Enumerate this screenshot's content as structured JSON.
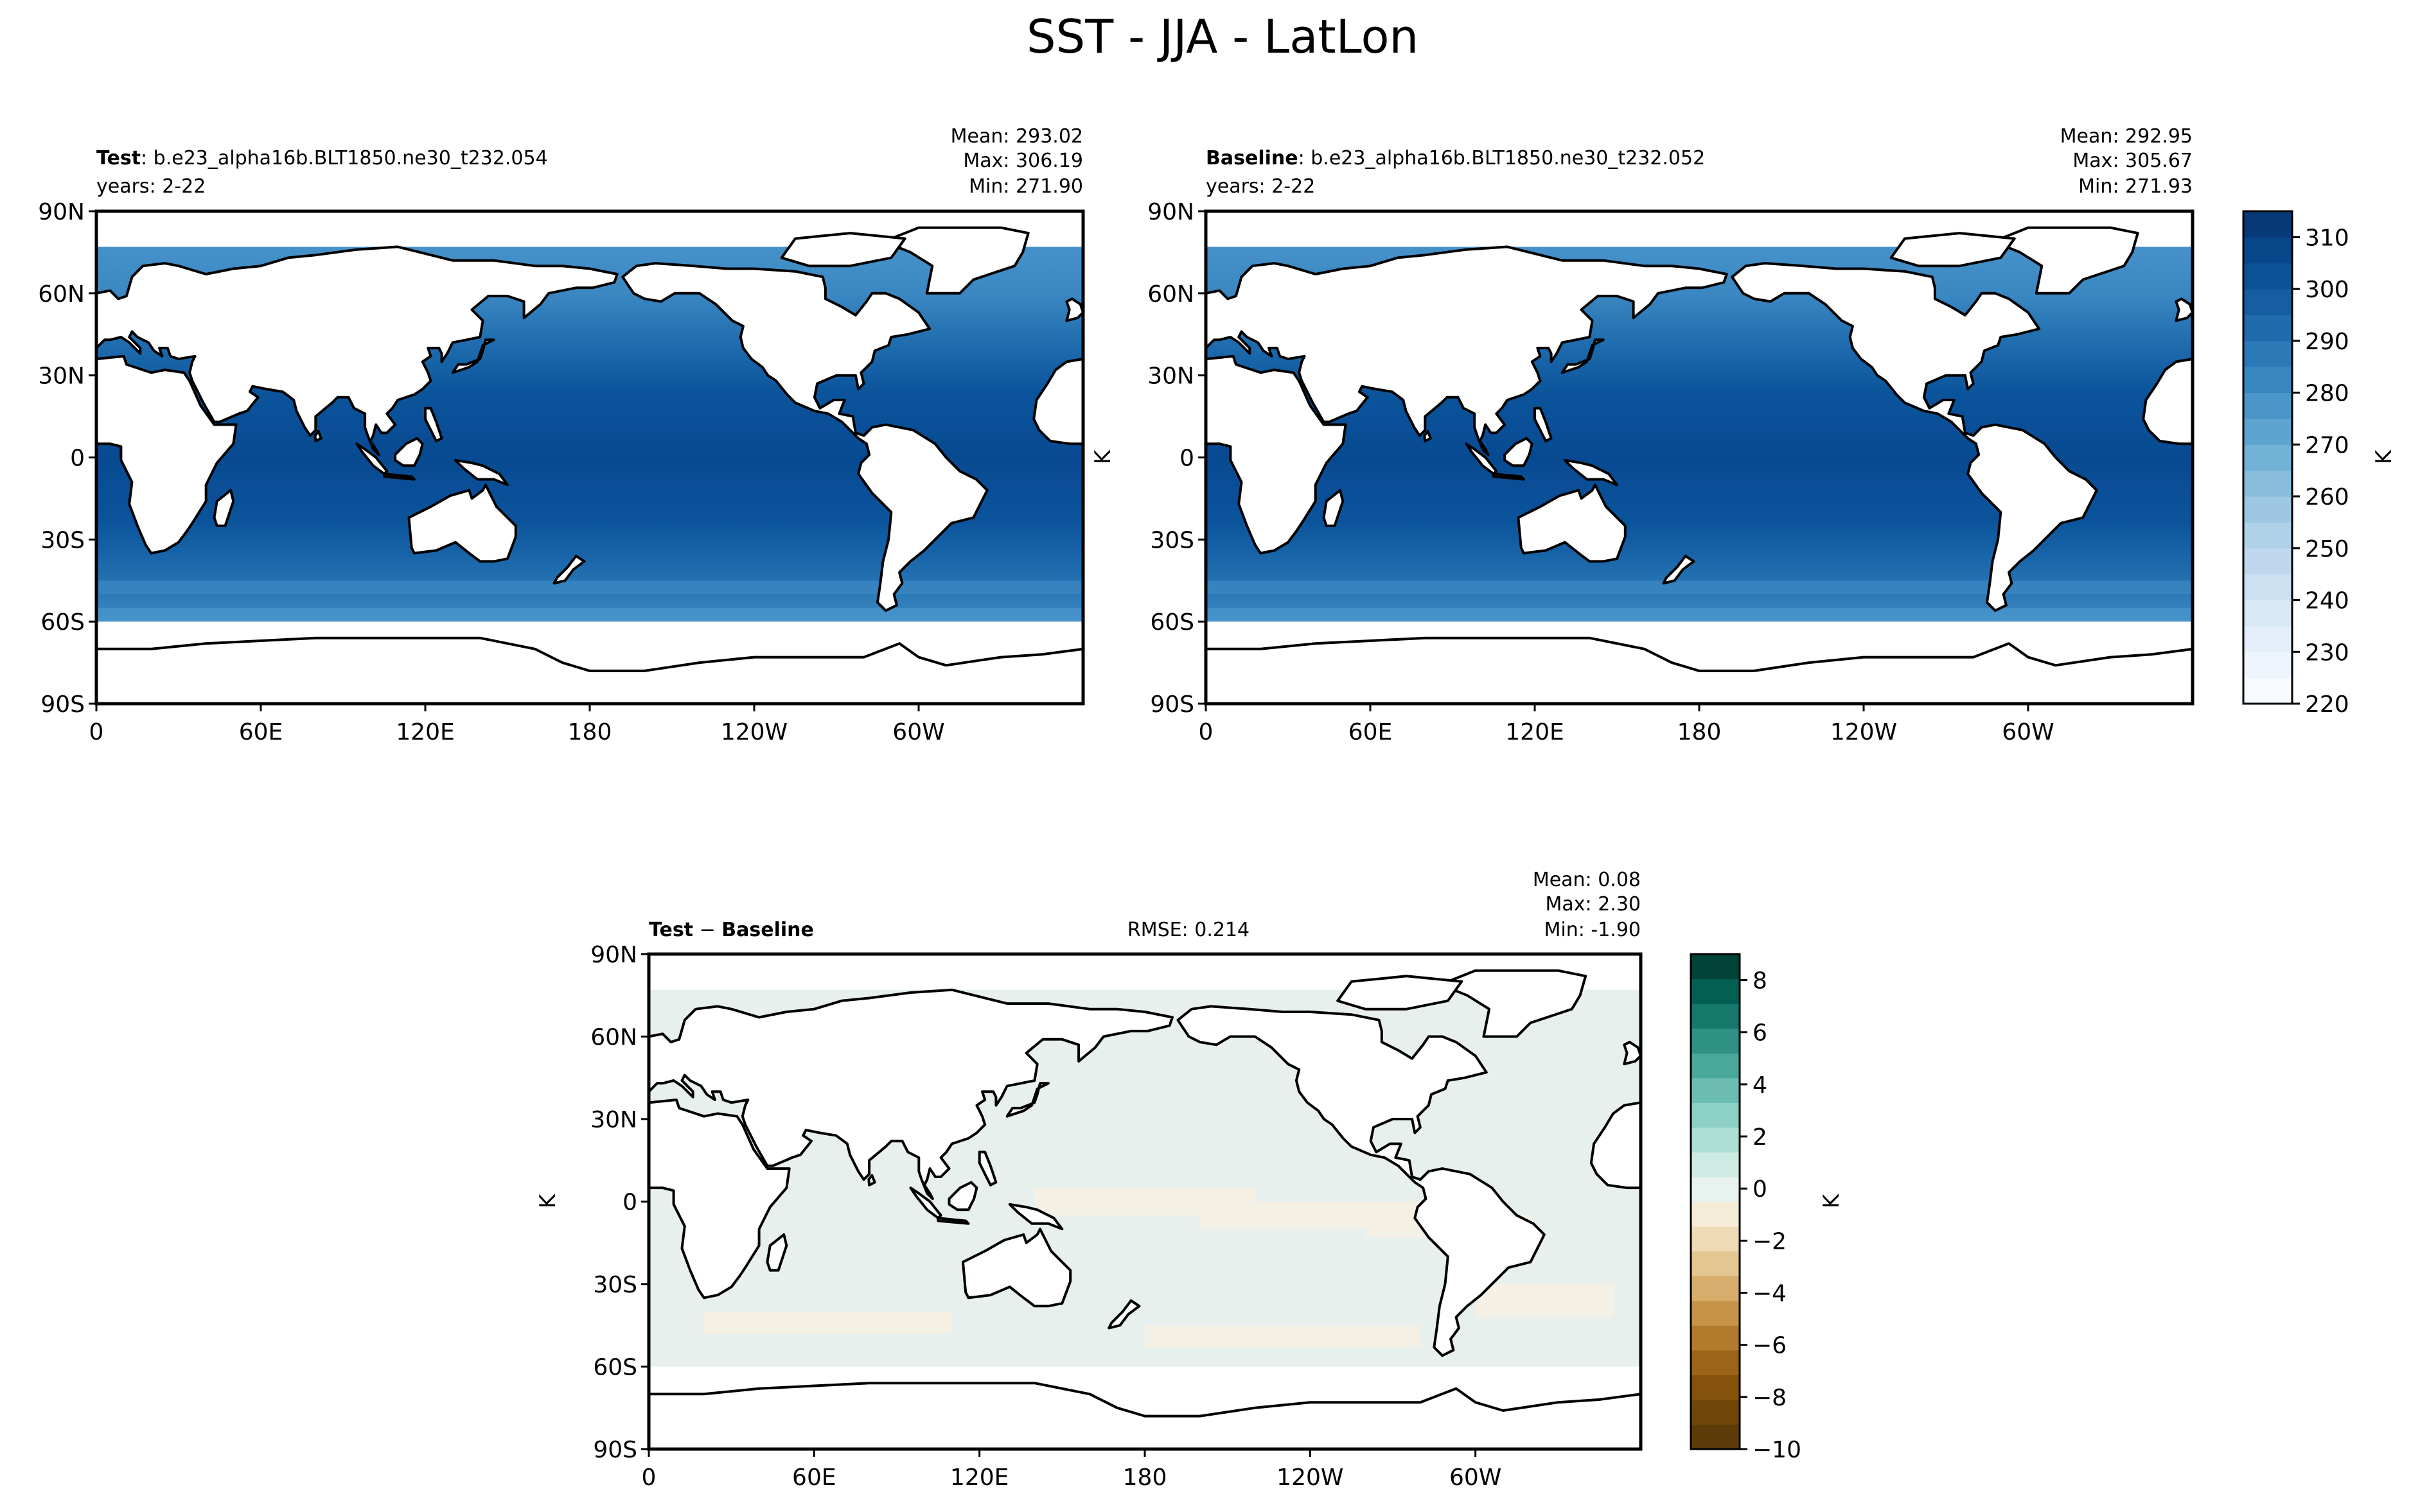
{
  "figure_title": "SST - JJA - LatLon",
  "colors": {
    "ocean_sst_stops": [
      "#4f99cf",
      "#3a87c2",
      "#2c79b9",
      "#1f6cae",
      "#135fa5",
      "#0b549c",
      "#084a92"
    ],
    "land": "#ffffff",
    "coast": "#000000",
    "diff_main": "#e8f0ee",
    "diff_neg": "#f5f0e4"
  },
  "chart_data": [
    {
      "type": "heatmap",
      "panel": "test",
      "title_bold": "Test",
      "title_rest": ": b.e23_alpha16b.BLT1850.ne30_t232.054",
      "subtitle": "years: 2-22",
      "stats": [
        "Mean: 293.02",
        "Max: 306.19",
        "Min: 271.90"
      ],
      "xticks": [
        "0",
        "60E",
        "120E",
        "180",
        "120W",
        "60W"
      ],
      "xtick_values": [
        0,
        60,
        120,
        180,
        240,
        300
      ],
      "xlim": [
        0,
        360
      ],
      "yticks": [
        "90N",
        "60N",
        "30N",
        "0",
        "30S",
        "60S",
        "90S"
      ],
      "ytick_values": [
        90,
        60,
        30,
        0,
        -30,
        -60,
        -90
      ],
      "ylim": [
        -90,
        90
      ],
      "ylabel": "",
      "variable": "SST",
      "units": "K"
    },
    {
      "type": "heatmap",
      "panel": "baseline",
      "title_bold": "Baseline",
      "title_rest": ": b.e23_alpha16b.BLT1850.ne30_t232.052",
      "subtitle": "years: 2-22",
      "stats": [
        "Mean: 292.95",
        "Max: 305.67",
        "Min: 271.93"
      ],
      "xticks": [
        "0",
        "60E",
        "120E",
        "180",
        "120W",
        "60W"
      ],
      "xtick_values": [
        0,
        60,
        120,
        180,
        240,
        300
      ],
      "xlim": [
        0,
        360
      ],
      "yticks": [
        "90N",
        "60N",
        "30N",
        "0",
        "30S",
        "60S",
        "90S"
      ],
      "ytick_values": [
        90,
        60,
        30,
        0,
        -30,
        -60,
        -90
      ],
      "ylim": [
        -90,
        90
      ],
      "ylabel": "K",
      "colorbar": {
        "ticks": [
          "310",
          "300",
          "290",
          "280",
          "270",
          "260",
          "250",
          "240",
          "230",
          "220"
        ],
        "tick_values": [
          310,
          300,
          290,
          280,
          270,
          260,
          250,
          240,
          230,
          220
        ],
        "range": [
          220,
          315
        ],
        "label": "K",
        "colors": [
          "#f7fbff",
          "#eef5fc",
          "#e4eff9",
          "#d9e8f5",
          "#cde0f1",
          "#bfd8ed",
          "#b0d2e8",
          "#9ec8e1",
          "#88bedc",
          "#72b2d7",
          "#5ea4d0",
          "#4a96c9",
          "#3987c0",
          "#2b79b7",
          "#1f6bac",
          "#145ea1",
          "#0c5296",
          "#08468a",
          "#083a7a"
        ]
      }
    },
    {
      "type": "heatmap",
      "panel": "difference",
      "title_bold_1": "Test",
      "title_mid": " − ",
      "title_bold_2": "Baseline",
      "rmse": "RMSE: 0.214",
      "stats": [
        "Mean:  0.08",
        "Max:  2.30",
        "Min: -1.90"
      ],
      "xticks": [
        "0",
        "60E",
        "120E",
        "180",
        "120W",
        "60W"
      ],
      "xtick_values": [
        0,
        60,
        120,
        180,
        240,
        300
      ],
      "xlim": [
        0,
        360
      ],
      "yticks": [
        "90N",
        "60N",
        "30N",
        "0",
        "30S",
        "60S",
        "90S"
      ],
      "ytick_values": [
        90,
        60,
        30,
        0,
        -30,
        -60,
        -90
      ],
      "ylim": [
        -90,
        90
      ],
      "ylabel": "K",
      "colorbar": {
        "ticks": [
          "8",
          "6",
          "4",
          "2",
          "0",
          "−2",
          "−4",
          "−6",
          "−8",
          "−10"
        ],
        "tick_values": [
          8,
          6,
          4,
          2,
          0,
          -2,
          -4,
          -6,
          -8,
          -10
        ],
        "range": [
          -10,
          9
        ],
        "label": "K",
        "colors": [
          "#5e3c0a",
          "#704708",
          "#84520b",
          "#9c6418",
          "#b27a2c",
          "#c69348",
          "#d6ad6b",
          "#e3c691",
          "#eedbb5",
          "#f5ecd8",
          "#e8f2ef",
          "#cdeae3",
          "#aedfd6",
          "#8dd0c4",
          "#6bbdb0",
          "#4aa89a",
          "#2e9183",
          "#16786b",
          "#045f53",
          "#014337"
        ]
      }
    }
  ]
}
